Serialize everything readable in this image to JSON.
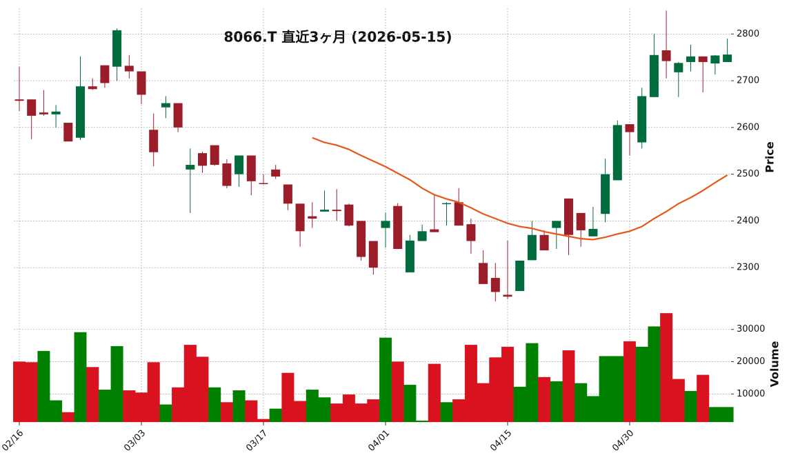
{
  "chart_data": {
    "type": "candlestick",
    "title": "8066.T  直近3ヶ月  (2026-05-15)",
    "categories": [
      "02/16",
      null,
      null,
      null,
      null,
      null,
      null,
      null,
      null,
      null,
      "03/03",
      null,
      null,
      null,
      null,
      null,
      null,
      null,
      null,
      null,
      "03/17",
      null,
      null,
      null,
      null,
      null,
      null,
      null,
      null,
      null,
      "04/01",
      null,
      null,
      null,
      null,
      null,
      null,
      null,
      null,
      null,
      "04/15",
      null,
      null,
      null,
      null,
      null,
      null,
      null,
      null,
      null,
      "04/30",
      null,
      null,
      null,
      null,
      null,
      null,
      null,
      null
    ],
    "open": [
      2660,
      2660,
      2632,
      2628,
      2610,
      2578,
      2688,
      2733,
      2730,
      2732,
      2720,
      2595,
      2643,
      2652,
      2510,
      2545,
      2562,
      2523,
      2500,
      2540,
      2481,
      2510,
      2478,
      2437,
      2410,
      2420,
      2424,
      2435,
      2400,
      2357,
      2385,
      2432,
      2290,
      2357,
      2382,
      2436,
      2440,
      2393,
      2310,
      2278,
      2242,
      2250,
      2316,
      2370,
      2385,
      2448,
      2417,
      2367,
      2415,
      2487,
      2607,
      2568,
      2665,
      2765,
      2718,
      2740,
      2752,
      2737,
      2740
    ],
    "high": [
      2730,
      2660,
      2680,
      2648,
      2610,
      2752,
      2705,
      2733,
      2812,
      2755,
      2720,
      2630,
      2667,
      2652,
      2555,
      2548,
      2562,
      2532,
      2540,
      2540,
      2500,
      2520,
      2478,
      2437,
      2440,
      2465,
      2468,
      2437,
      2400,
      2357,
      2418,
      2438,
      2370,
      2392,
      2455,
      2440,
      2470,
      2405,
      2337,
      2310,
      2358,
      2315,
      2400,
      2380,
      2400,
      2448,
      2417,
      2430,
      2533,
      2615,
      2607,
      2685,
      2800,
      2850,
      2740,
      2777,
      2752,
      2755,
      2790
    ],
    "low": [
      2635,
      2575,
      2625,
      2600,
      2570,
      2573,
      2680,
      2685,
      2700,
      2705,
      2650,
      2517,
      2620,
      2590,
      2417,
      2503,
      2518,
      2470,
      2473,
      2455,
      2478,
      2490,
      2423,
      2345,
      2385,
      2420,
      2400,
      2388,
      2315,
      2285,
      2343,
      2340,
      2290,
      2357,
      2376,
      2390,
      2390,
      2330,
      2265,
      2228,
      2233,
      2250,
      2316,
      2337,
      2340,
      2327,
      2345,
      2367,
      2397,
      2487,
      2540,
      2555,
      2665,
      2705,
      2665,
      2720,
      2675,
      2713,
      2740
    ],
    "close": [
      2657,
      2625,
      2628,
      2634,
      2570,
      2688,
      2682,
      2695,
      2808,
      2720,
      2670,
      2547,
      2652,
      2600,
      2520,
      2518,
      2520,
      2475,
      2540,
      2485,
      2479,
      2495,
      2437,
      2378,
      2405,
      2424,
      2421,
      2390,
      2323,
      2300,
      2400,
      2340,
      2358,
      2378,
      2376,
      2438,
      2390,
      2357,
      2265,
      2248,
      2238,
      2315,
      2370,
      2337,
      2400,
      2370,
      2380,
      2383,
      2500,
      2605,
      2590,
      2667,
      2755,
      2742,
      2738,
      2752,
      2740,
      2754,
      2756
    ],
    "up_color": "#006b3c",
    "down_color": "#9b1d2a",
    "ma": {
      "color": "#e8561a",
      "values": [
        null,
        null,
        null,
        null,
        null,
        null,
        null,
        null,
        null,
        null,
        null,
        null,
        null,
        null,
        null,
        null,
        null,
        null,
        null,
        null,
        null,
        null,
        null,
        null,
        2578,
        2568,
        2562,
        2553,
        2540,
        2528,
        2516,
        2502,
        2488,
        2470,
        2456,
        2447,
        2440,
        2428,
        2415,
        2405,
        2395,
        2388,
        2384,
        2377,
        2372,
        2367,
        2362,
        2360,
        2365,
        2372,
        2378,
        2388,
        2405,
        2420,
        2437,
        2450,
        2465,
        2482,
        2498
      ]
    },
    "ylabel": "Price",
    "ylim": [
      2225,
      2855
    ],
    "yticks": [
      2300,
      2400,
      2500,
      2600,
      2700,
      2800
    ],
    "grid": true,
    "volume": {
      "ylabel": "Volume",
      "ylim": [
        1300,
        37000
      ],
      "yticks": [
        10000,
        20000,
        30000
      ],
      "up_color": "#008000",
      "down_color": "#d9121f",
      "values": [
        20000,
        19800,
        23300,
        8000,
        4300,
        29100,
        18300,
        11300,
        24800,
        11100,
        10400,
        19800,
        6700,
        12000,
        25200,
        21500,
        12000,
        7400,
        11100,
        8000,
        2200,
        5400,
        16500,
        7800,
        11300,
        8900,
        7000,
        9800,
        7000,
        8300,
        27400,
        20000,
        12800,
        1700,
        19300,
        7400,
        8300,
        25200,
        13300,
        21300,
        24600,
        12200,
        25700,
        15200,
        13900,
        23500,
        13300,
        9300,
        21700,
        21700,
        26300,
        24600,
        30900,
        35000,
        14600,
        10900,
        15900,
        5900,
        5900
      ]
    }
  }
}
